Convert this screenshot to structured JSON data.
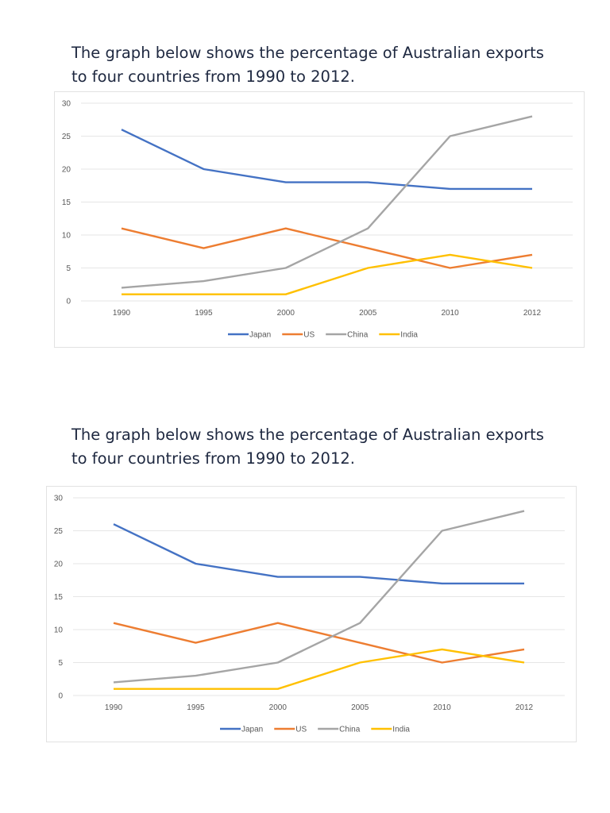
{
  "sections": [
    {
      "title": "The graph below shows the percentage of Australian exports to four countries from 1990 to 2012."
    },
    {
      "title": "The graph below shows the percentage of Australian exports to four countries from 1990 to 2012."
    }
  ],
  "chart_data": [
    {
      "type": "line",
      "categories": [
        "1990",
        "1995",
        "2000",
        "2005",
        "2010",
        "2012"
      ],
      "ylim": [
        0,
        30
      ],
      "yticks": [
        "0",
        "5",
        "10",
        "15",
        "20",
        "25",
        "30"
      ],
      "grid": true,
      "legend": "bottom",
      "series": [
        {
          "name": "Japan",
          "color": "#4472c4",
          "values": [
            26,
            20,
            18,
            18,
            17,
            17
          ]
        },
        {
          "name": "US",
          "color": "#ed7d31",
          "values": [
            11,
            8,
            11,
            8,
            5,
            7
          ]
        },
        {
          "name": "China",
          "color": "#a5a5a5",
          "values": [
            2,
            3,
            5,
            11,
            25,
            28
          ]
        },
        {
          "name": "India",
          "color": "#ffc000",
          "values": [
            1,
            1,
            1,
            5,
            7,
            5
          ]
        }
      ]
    },
    {
      "type": "line",
      "categories": [
        "1990",
        "1995",
        "2000",
        "2005",
        "2010",
        "2012"
      ],
      "ylim": [
        0,
        30
      ],
      "yticks": [
        "0",
        "5",
        "10",
        "15",
        "20",
        "25",
        "30"
      ],
      "grid": true,
      "legend": "bottom",
      "series": [
        {
          "name": "Japan",
          "color": "#4472c4",
          "values": [
            26,
            20,
            18,
            18,
            17,
            17
          ]
        },
        {
          "name": "US",
          "color": "#ed7d31",
          "values": [
            11,
            8,
            11,
            8,
            5,
            7
          ]
        },
        {
          "name": "China",
          "color": "#a5a5a5",
          "values": [
            2,
            3,
            5,
            11,
            25,
            28
          ]
        },
        {
          "name": "India",
          "color": "#ffc000",
          "values": [
            1,
            1,
            1,
            5,
            7,
            5
          ]
        }
      ]
    }
  ]
}
